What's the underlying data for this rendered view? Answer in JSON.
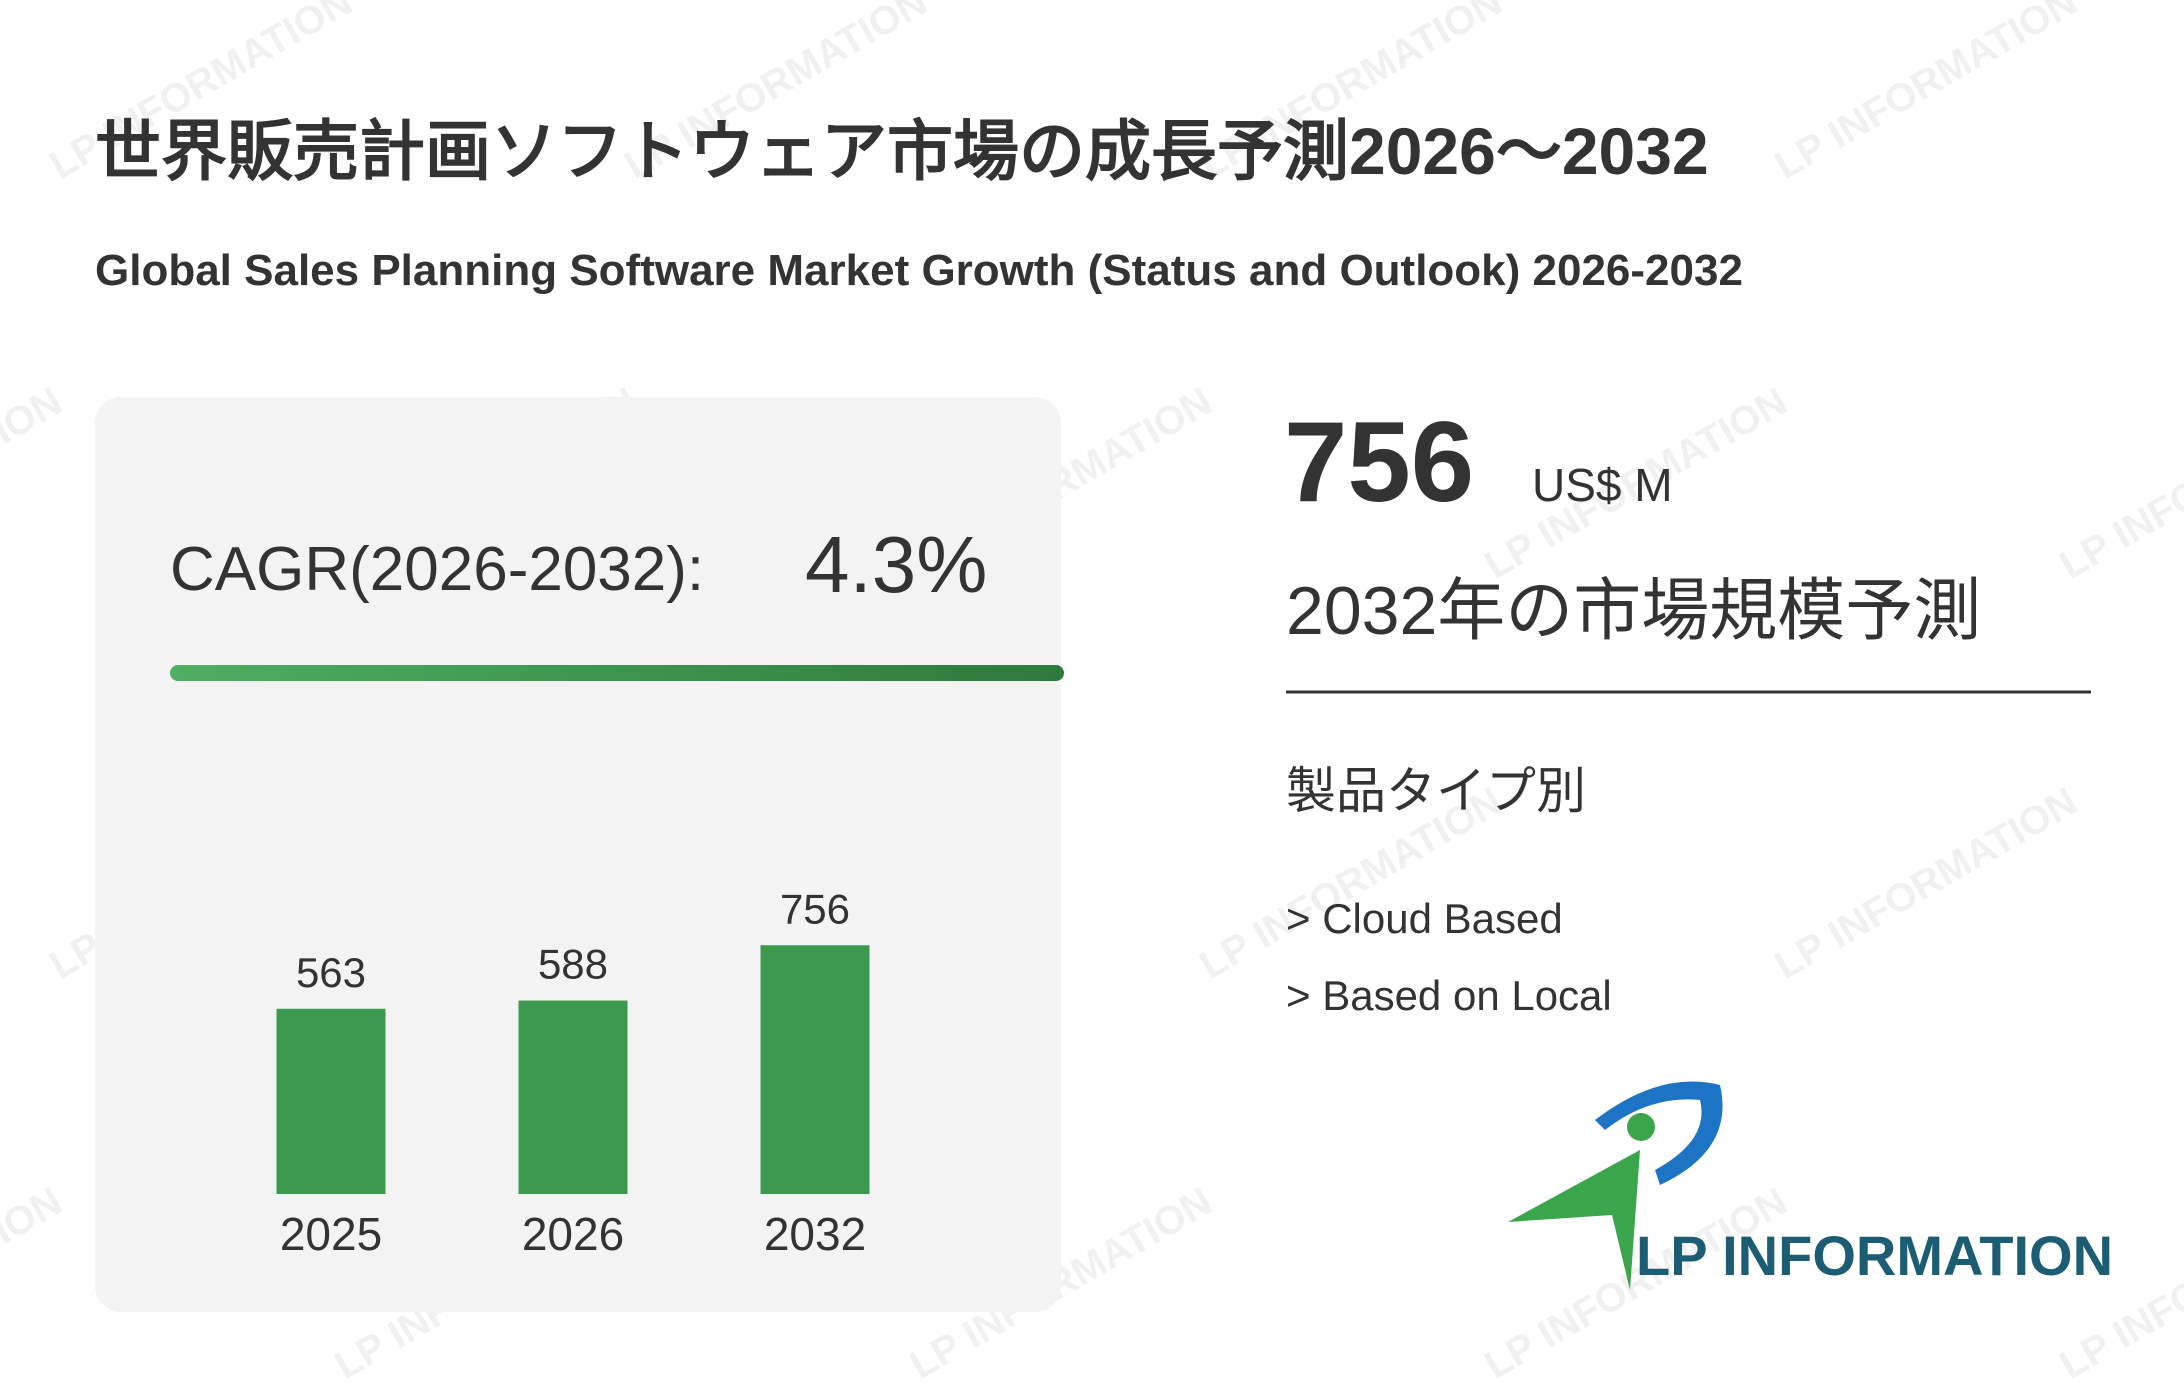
{
  "title": "世界販売計画ソフトウェア市場の成長予測2026～2032",
  "subtitle": "Global Sales Planning Software Market Growth (Status and Outlook) 2026-2032",
  "cagr_label": "CAGR(2026-2032):",
  "cagr_value": "4.3%",
  "market_size": "756",
  "market_unit": "US$ M",
  "market_caption": "2032年の市場規模予測",
  "segment_heading": "製品タイプ別",
  "segments": [
    "> Cloud Based",
    "> Based on Local"
  ],
  "logo_text": "LP INFORMATION",
  "watermark": "LP INFORMATION",
  "chart_data": {
    "type": "bar",
    "categories": [
      "2025",
      "2026",
      "2032"
    ],
    "values": [
      563,
      588,
      756
    ],
    "color": "#3b9a4f"
  }
}
